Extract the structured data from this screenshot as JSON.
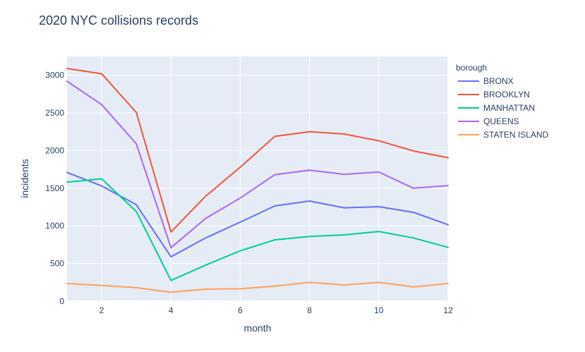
{
  "chart_data": {
    "type": "line",
    "title": "2020 NYC collisions records",
    "xlabel": "month",
    "ylabel": "incidents",
    "x": [
      1,
      2,
      3,
      4,
      5,
      6,
      7,
      8,
      9,
      10,
      11,
      12
    ],
    "xlim": [
      1,
      12
    ],
    "ylim": [
      0,
      3250
    ],
    "x_ticks": [
      2,
      4,
      6,
      8,
      10,
      12
    ],
    "y_ticks": [
      0,
      500,
      1000,
      1500,
      2000,
      2500,
      3000
    ],
    "grid": true,
    "legend_title": "borough",
    "legend_position": "right",
    "series": [
      {
        "name": "BRONX",
        "color": "#636efa",
        "values": [
          1710,
          1530,
          1280,
          590,
          840,
          1050,
          1265,
          1330,
          1240,
          1255,
          1180,
          1015
        ]
      },
      {
        "name": "BROOKLYN",
        "color": "#ef553b",
        "values": [
          3090,
          3020,
          2505,
          920,
          1395,
          1780,
          2190,
          2250,
          2220,
          2130,
          1995,
          1905
        ]
      },
      {
        "name": "MANHATTAN",
        "color": "#00cc96",
        "values": [
          1580,
          1625,
          1190,
          275,
          480,
          670,
          815,
          860,
          880,
          925,
          840,
          715
        ]
      },
      {
        "name": "QUEENS",
        "color": "#ab63fa",
        "values": [
          2920,
          2610,
          2090,
          710,
          1100,
          1370,
          1680,
          1740,
          1685,
          1715,
          1500,
          1535
        ]
      },
      {
        "name": "STATEN ISLAND",
        "color": "#ffa15a",
        "values": [
          235,
          210,
          180,
          120,
          160,
          165,
          200,
          250,
          215,
          250,
          190,
          235
        ]
      }
    ]
  }
}
